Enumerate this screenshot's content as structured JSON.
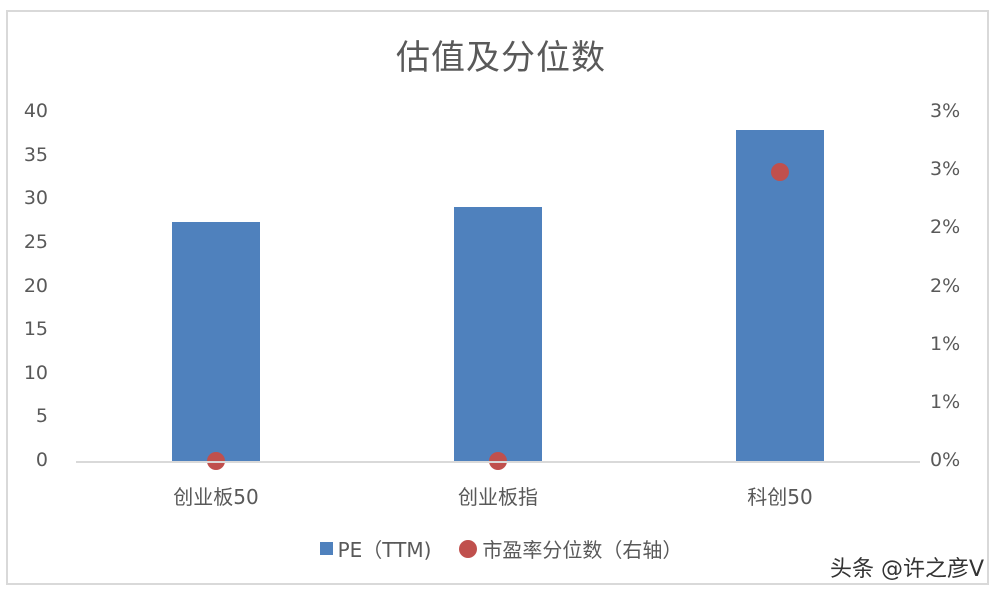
{
  "chart_data": {
    "type": "bar",
    "title": "估值及分位数",
    "categories": [
      "创业板50",
      "创业板指",
      "科创50"
    ],
    "series": [
      {
        "name": "PE（TTM)",
        "type": "bar",
        "axis": "left",
        "color": "#4f81bd",
        "values": [
          27.4,
          29.1,
          37.9
        ]
      },
      {
        "name": "市盈率分位数（右轴）",
        "type": "scatter",
        "axis": "right",
        "color": "#c0504d",
        "values": [
          0.0,
          0.0,
          0.0248
        ]
      }
    ],
    "left_axis": {
      "ylim": [
        0,
        40
      ],
      "ticks": [
        "40",
        "35",
        "30",
        "25",
        "20",
        "15",
        "10",
        "5",
        "0"
      ]
    },
    "right_axis": {
      "ylim": [
        0,
        0.03
      ],
      "ticks": [
        "3%",
        "3%",
        "2%",
        "2%",
        "1%",
        "1%",
        "0%"
      ]
    },
    "xlabel": "",
    "ylabel": "",
    "grid": false,
    "legend_position": "bottom"
  },
  "labels": {
    "title": "估值及分位数",
    "legend_pe": "PE（TTM)",
    "legend_pct": "市盈率分位数（右轴）",
    "x": [
      "创业板50",
      "创业板指",
      "科创50"
    ],
    "watermark": "头条 @许之彦V"
  }
}
